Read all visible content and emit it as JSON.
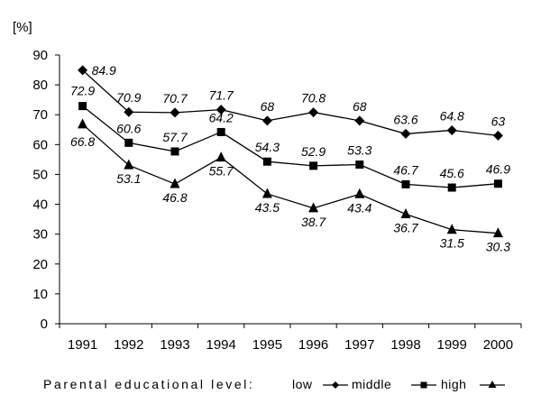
{
  "chart_data": {
    "type": "line",
    "title": "",
    "xlabel": "",
    "ylabel": "[%]",
    "ylim": [
      0,
      90
    ],
    "yticks": [
      0,
      10,
      20,
      30,
      40,
      50,
      60,
      70,
      80,
      90
    ],
    "grid": false,
    "legend_position": "bottom",
    "legend_title": "Parental educational level:",
    "x": [
      "1991",
      "1992",
      "1993",
      "1994",
      "1995",
      "1996",
      "1997",
      "1998",
      "1999",
      "2000"
    ],
    "series": [
      {
        "name": "low",
        "marker": "diamond",
        "values": [
          84.9,
          70.9,
          70.7,
          71.7,
          68,
          70.8,
          68,
          63.6,
          64.8,
          63
        ],
        "labels": [
          "84.9",
          "70.9",
          "70.7",
          "71.7",
          "68",
          "70.8",
          "68",
          "63.6",
          "64.8",
          "63"
        ]
      },
      {
        "name": "middle",
        "marker": "square",
        "values": [
          72.9,
          60.6,
          57.7,
          64.2,
          54.3,
          52.9,
          53.3,
          46.7,
          45.6,
          46.9
        ],
        "labels": [
          "72.9",
          "60.6",
          "57.7",
          "64.2",
          "54.3",
          "52.9",
          "53.3",
          "46.7",
          "45.6",
          "46.9"
        ]
      },
      {
        "name": "high",
        "marker": "triangle",
        "values": [
          66.8,
          53.1,
          46.8,
          55.7,
          43.5,
          38.7,
          43.4,
          36.7,
          31.5,
          30.3
        ],
        "labels": [
          "66.8",
          "53.1",
          "46.8",
          "55.7",
          "43.5",
          "38.7",
          "43.4",
          "36.7",
          "31.5",
          "30.3"
        ]
      }
    ]
  },
  "colors": {
    "line": "#000000",
    "axis": "#000000",
    "background": "#ffffff"
  }
}
